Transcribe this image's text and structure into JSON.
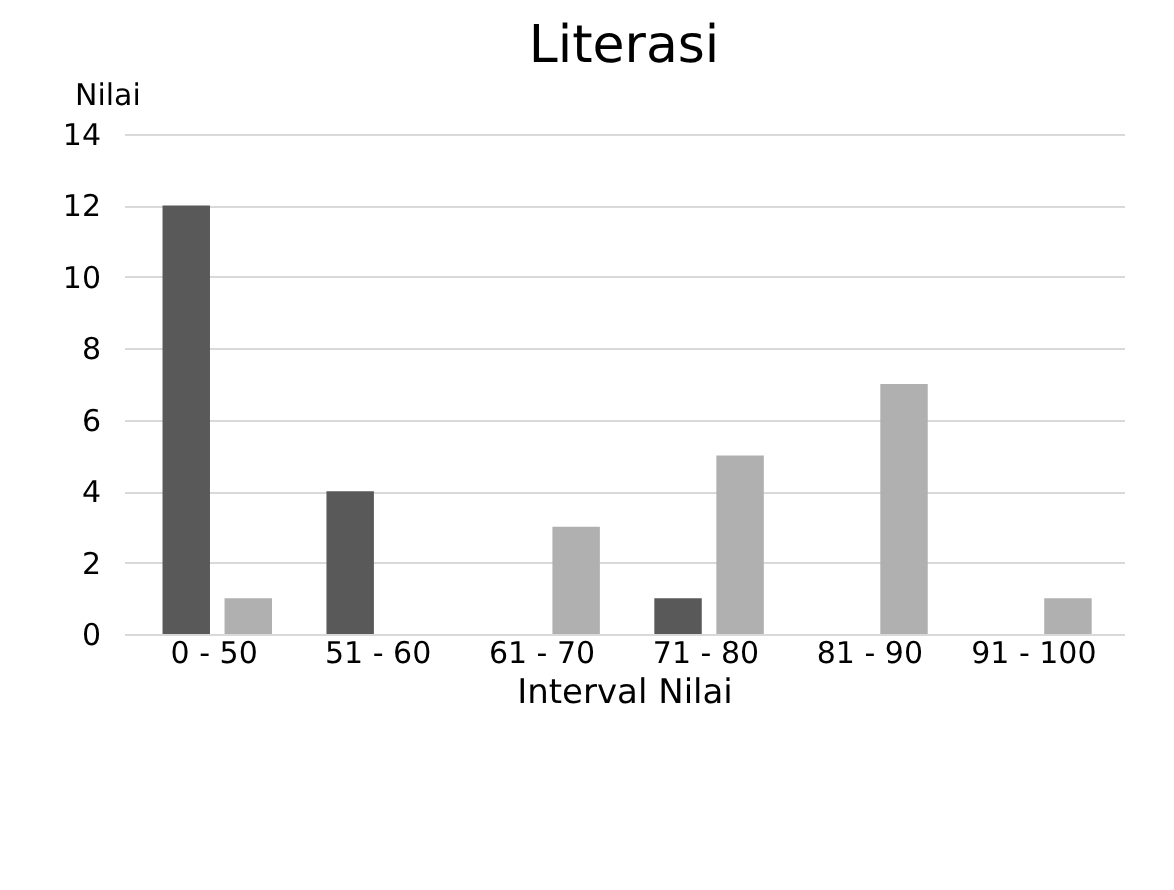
{
  "chart_data": {
    "type": "bar",
    "title": "Literasi",
    "xlabel": "Interval Nilai",
    "ylabel": "Nilai",
    "categories": [
      "0 - 50",
      "51 - 60",
      "61 - 70",
      "71 - 80",
      "81 - 90",
      "91 - 100"
    ],
    "series": [
      {
        "color": "#595959",
        "values": [
          12,
          4,
          0,
          1,
          0,
          0
        ]
      },
      {
        "color": "#b0b0b0",
        "values": [
          1,
          0,
          3,
          5,
          7,
          1
        ]
      }
    ],
    "ylim": [
      0,
      14
    ],
    "yticks": [
      0,
      2,
      4,
      6,
      8,
      10,
      12,
      14
    ],
    "grid": "y"
  }
}
